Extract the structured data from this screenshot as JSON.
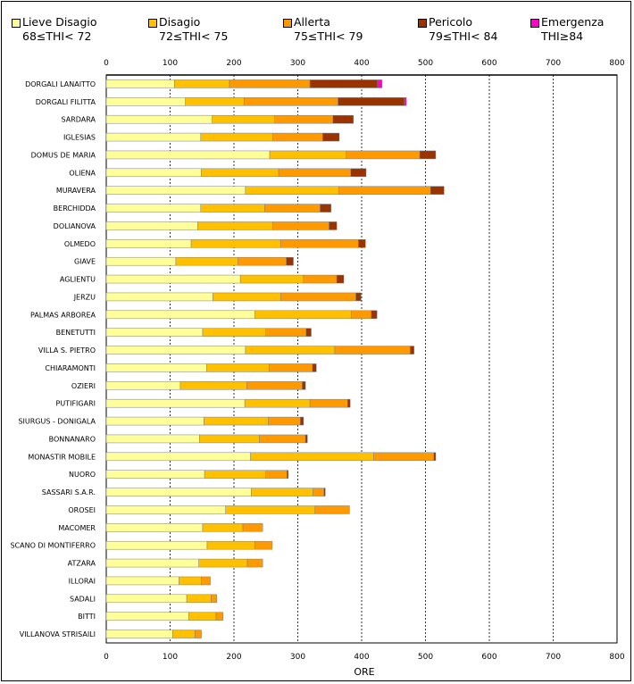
{
  "chart_data": {
    "type": "bar",
    "orientation": "horizontal",
    "stacked": true,
    "xlabel": "ORE",
    "xlim": [
      0,
      800
    ],
    "xticks": [
      0,
      100,
      200,
      300,
      400,
      500,
      600,
      700,
      800
    ],
    "legend_position": "top",
    "categories": [
      "DORGALI LANAITTO",
      "DORGALI FILITTA",
      "SARDARA",
      "IGLESIAS",
      "DOMUS DE MARIA",
      "OLIENA",
      "MURAVERA",
      "BERCHIDDA",
      "DOLIANOVA",
      "OLMEDO",
      "GIAVE",
      "AGLIENTU",
      "JERZU",
      "PALMAS ARBOREA",
      "BENETUTTI",
      "VILLA S. PIETRO",
      "CHIARAMONTI",
      "OZIERI",
      "PUTIFIGARI",
      "SIURGUS - DONIGALA",
      "BONNANARO",
      "MONASTIR MOBILE",
      "NUORO",
      "SASSARI S.A.R.",
      "OROSEI",
      "MACOMER",
      "SCANO DI MONTIFERRO",
      "ATZARA",
      "ILLORAI",
      "SADALI",
      "BITTI",
      "VILLANOVA STRISAILI"
    ],
    "series": [
      {
        "name": "Lieve Disagio",
        "range": "68≤THI< 72",
        "color": "#ffff99",
        "values": [
          107,
          124,
          166,
          148,
          256,
          149,
          218,
          148,
          143,
          133,
          109,
          210,
          167,
          233,
          151,
          218,
          157,
          116,
          217,
          153,
          146,
          226,
          154,
          227,
          187,
          151,
          158,
          145,
          114,
          126,
          129,
          104
        ]
      },
      {
        "name": "Disagio",
        "range": "72≤THI< 75",
        "color": "#ffc000",
        "values": [
          86,
          92,
          98,
          113,
          120,
          121,
          146,
          100,
          118,
          140,
          97,
          99,
          106,
          151,
          99,
          140,
          98,
          104,
          102,
          101,
          94,
          193,
          96,
          97,
          140,
          63,
          75,
          76,
          35,
          38,
          43,
          35
        ]
      },
      {
        "name": "Allerta",
        "range": "75≤THI< 79",
        "color": "#ff9900",
        "values": [
          126,
          147,
          91,
          78,
          115,
          113,
          144,
          87,
          88,
          122,
          76,
          52,
          118,
          31,
          63,
          118,
          68,
          87,
          59,
          50,
          72,
          94,
          33,
          17,
          54,
          31,
          27,
          24,
          14,
          9,
          11,
          10
        ]
      },
      {
        "name": "Pericolo",
        "range": "79≤THI< 84",
        "color": "#993300",
        "values": [
          106,
          104,
          32,
          26,
          25,
          24,
          21,
          17,
          12,
          11,
          11,
          11,
          8,
          9,
          8,
          6,
          6,
          5,
          4,
          5,
          3,
          3,
          2,
          2,
          0,
          0,
          0,
          0,
          0,
          0,
          0,
          0
        ]
      },
      {
        "name": "Emergenza",
        "range": "THI≥84",
        "color": "#ff00cc",
        "values": [
          7,
          3,
          0,
          0,
          0,
          0,
          0,
          0,
          0,
          0,
          0,
          0,
          0,
          0,
          0,
          0,
          0,
          0,
          0,
          0,
          0,
          0,
          0,
          0,
          0,
          0,
          0,
          0,
          0,
          0,
          0,
          0
        ]
      }
    ]
  }
}
